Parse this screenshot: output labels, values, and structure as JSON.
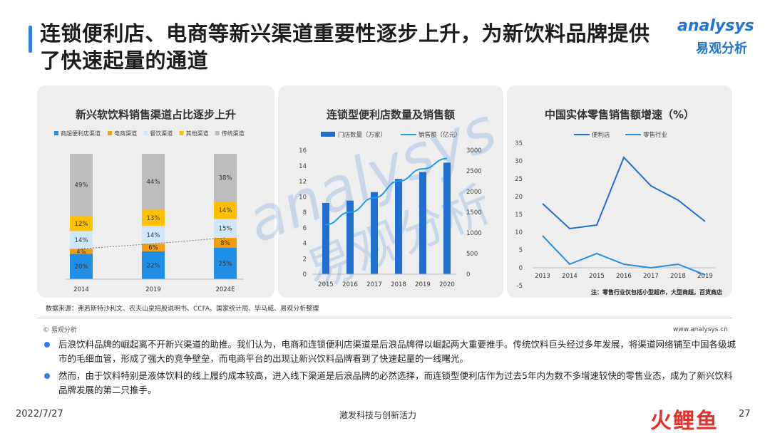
{
  "title": "连锁便利店、电商等新兴渠道重要性逐步上升，为新饮料品牌提供了快速起量的通道",
  "logo": {
    "en": "analysys",
    "cn": "易观分析"
  },
  "watermark": {
    "en": "analysys",
    "cn": "易观分析"
  },
  "source": "数据来源：弗若斯特沙利文、农夫山泉招股说明书、CCFA、国家统计局、毕马威、易观分析整理",
  "copyright": "© 易观分析",
  "url": "www.analysys.cn",
  "bullets": [
    "后浪饮料品牌的崛起离不开新兴渠道的助推。我们认为，电商和连锁便利店渠道是后浪品牌得以崛起两大重要推手。传统饮料巨头经过多年发展，将渠道网络铺至中国各级城市的毛细血管，形成了强大的竞争壁垒，而电商平台的出现让新兴饮料品牌看到了快速起量的一线曙光。",
    "然而，由于饮料特别是液体饮料的线上履约成本较高，进入线下渠道是后浪品牌的必然选择，而连锁型便利店作为过去5年内为数不多增速较快的零售业态，成为了新兴饮料品牌发展的第二只推手。"
  ],
  "footer": {
    "date": "2022/7/27",
    "center": "激发科技与创新活力",
    "page": "27",
    "brand": "火鲤鱼"
  },
  "colors": {
    "accent": "#2f7fe6",
    "blue": "#1f8fe8",
    "orange": "#f3a000",
    "yellow": "#ffc000",
    "lightblue": "#cfe7f8",
    "gray": "#bdbdbd"
  },
  "chart_data": [
    {
      "type": "bar",
      "stacked": true,
      "percent": true,
      "title": "新兴软饮料销售渠道占比逐步上升",
      "categories": [
        "2014",
        "2019",
        "2024E"
      ],
      "series": [
        {
          "name": "商超便利店渠道",
          "color": "#1f8fe8",
          "values": [
            20,
            22,
            25
          ],
          "labels": [
            "20%",
            "22%",
            "25%"
          ]
        },
        {
          "name": "电商渠道",
          "color": "#f39c12",
          "values": [
            4,
            6,
            8
          ],
          "labels": [
            "4%",
            "6%",
            "8%"
          ]
        },
        {
          "name": "餐饮渠道",
          "color": "#cfe7f8",
          "values": [
            14,
            14,
            15
          ],
          "labels": [
            "14%",
            "14%",
            "15%"
          ]
        },
        {
          "name": "其他渠道",
          "color": "#ffc000",
          "values": [
            12,
            13,
            14
          ],
          "labels": [
            "12%",
            "13%",
            "14%"
          ]
        },
        {
          "name": "传统渠道",
          "color": "#bdbdbd",
          "values": [
            49,
            44,
            38
          ],
          "labels": [
            "49%",
            "44%",
            "38%"
          ]
        }
      ],
      "legend": "top",
      "trendline": "dashed, connecting top of 电商渠道 segments"
    },
    {
      "type": "bar+line",
      "title": "连锁型便利店数量及销售额",
      "categories": [
        "2015",
        "2016",
        "2017",
        "2018",
        "2019",
        "2020"
      ],
      "series": [
        {
          "name": "门店数量（万家）",
          "type": "bar",
          "axis": "left",
          "color": "#1f6fd1",
          "values": [
            9.2,
            9.5,
            10.6,
            12.3,
            13.2,
            14.4
          ]
        },
        {
          "name": "销售额（亿元）",
          "type": "line",
          "axis": "right",
          "color": "#1f9be8",
          "values": [
            1200,
            1500,
            1850,
            2250,
            2550,
            2800
          ]
        }
      ],
      "y_left": {
        "min": 0,
        "max": 16,
        "ticks": [
          "0",
          "2",
          "4",
          "6",
          "8",
          "10",
          "12",
          "14",
          "16"
        ]
      },
      "y_right": {
        "min": 0,
        "max": 3000,
        "ticks": [
          "0",
          "500",
          "1000",
          "1500",
          "2000",
          "2500",
          "3000"
        ]
      },
      "legend": "top"
    },
    {
      "type": "line",
      "title": "中国实体零售销售额增速（%）",
      "x": [
        "2013",
        "2014",
        "2015",
        "2016",
        "2017",
        "2018",
        "2019"
      ],
      "series": [
        {
          "name": "便利店",
          "color": "#1f6fd1",
          "values": [
            18,
            11,
            12,
            31,
            23,
            19,
            13
          ]
        },
        {
          "name": "零售行业",
          "color": "#1f8fe8",
          "values": [
            9,
            1,
            4,
            1,
            0,
            1,
            -2
          ]
        }
      ],
      "ylim": [
        -5,
        35
      ],
      "yticks": [
        "-5",
        "0",
        "5",
        "10",
        "15",
        "20",
        "25",
        "30",
        "35"
      ],
      "legend": "top",
      "note": "注：零售行业仅包括小型超市，大型商超，百货商店"
    }
  ]
}
